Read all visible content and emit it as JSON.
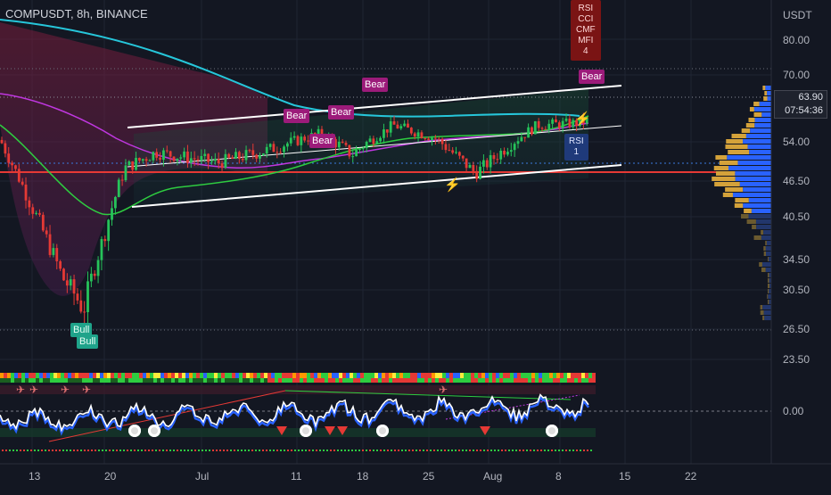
{
  "header": {
    "symbol": "COMPUSDT, 8h, BINANCE"
  },
  "price_axis": {
    "currency": "USDT",
    "ticks": [
      "80.00",
      "70.00",
      "63.90",
      "54.00",
      "46.50",
      "40.50",
      "34.50",
      "30.50",
      "26.50",
      "23.50",
      "0.00"
    ]
  },
  "time_axis": {
    "ticks": [
      "13",
      "20",
      "Jul",
      "11",
      "18",
      "25",
      "Aug",
      "8",
      "15",
      "22"
    ]
  },
  "last_price": {
    "price": "63.90",
    "countdown": "07:54:36"
  },
  "labels": {
    "bear": "Bear",
    "bull": "Bull",
    "rsi_box": [
      "RSI",
      "1"
    ],
    "multi_box": [
      "RSI",
      "CCI",
      "CMF",
      "MFI",
      "4"
    ]
  },
  "colors": {
    "background": "#131722",
    "up": "#26c35a",
    "down": "#e53935",
    "channel": "#ffffff",
    "ma_teal": "#26c6da",
    "ma_green": "#2ecc40",
    "ma_purple": "#c037e0",
    "support": "#e53935",
    "bear_label": "#9c1b7a",
    "bull_label": "#1fa38a"
  },
  "chart_data": {
    "type": "candlestick",
    "symbol": "COMPUSDT",
    "timeframe": "8h",
    "exchange": "BINANCE",
    "ylim": [
      26.5,
      80.0
    ],
    "approx_close_path": [
      {
        "t": "Jun 09",
        "close": 58.0
      },
      {
        "t": "Jun 13",
        "close": 42.0
      },
      {
        "t": "Jun 16",
        "close": 32.0
      },
      {
        "t": "Jun 18",
        "close": 28.5
      },
      {
        "t": "Jun 20",
        "close": 38.0
      },
      {
        "t": "Jun 22",
        "close": 49.0
      },
      {
        "t": "Jun 25",
        "close": 52.0
      },
      {
        "t": "Jul 01",
        "close": 50.0
      },
      {
        "t": "Jul 06",
        "close": 52.5
      },
      {
        "t": "Jul 11",
        "close": 56.0
      },
      {
        "t": "Jul 14",
        "close": 51.5
      },
      {
        "t": "Jul 18",
        "close": 58.0
      },
      {
        "t": "Jul 22",
        "close": 55.0
      },
      {
        "t": "Jul 26",
        "close": 48.0
      },
      {
        "t": "Aug 01",
        "close": 58.0
      },
      {
        "t": "Aug 05",
        "close": 58.5
      },
      {
        "t": "Aug 08",
        "close": 61.0
      },
      {
        "t": "Aug 10",
        "close": 63.9
      }
    ]
  }
}
